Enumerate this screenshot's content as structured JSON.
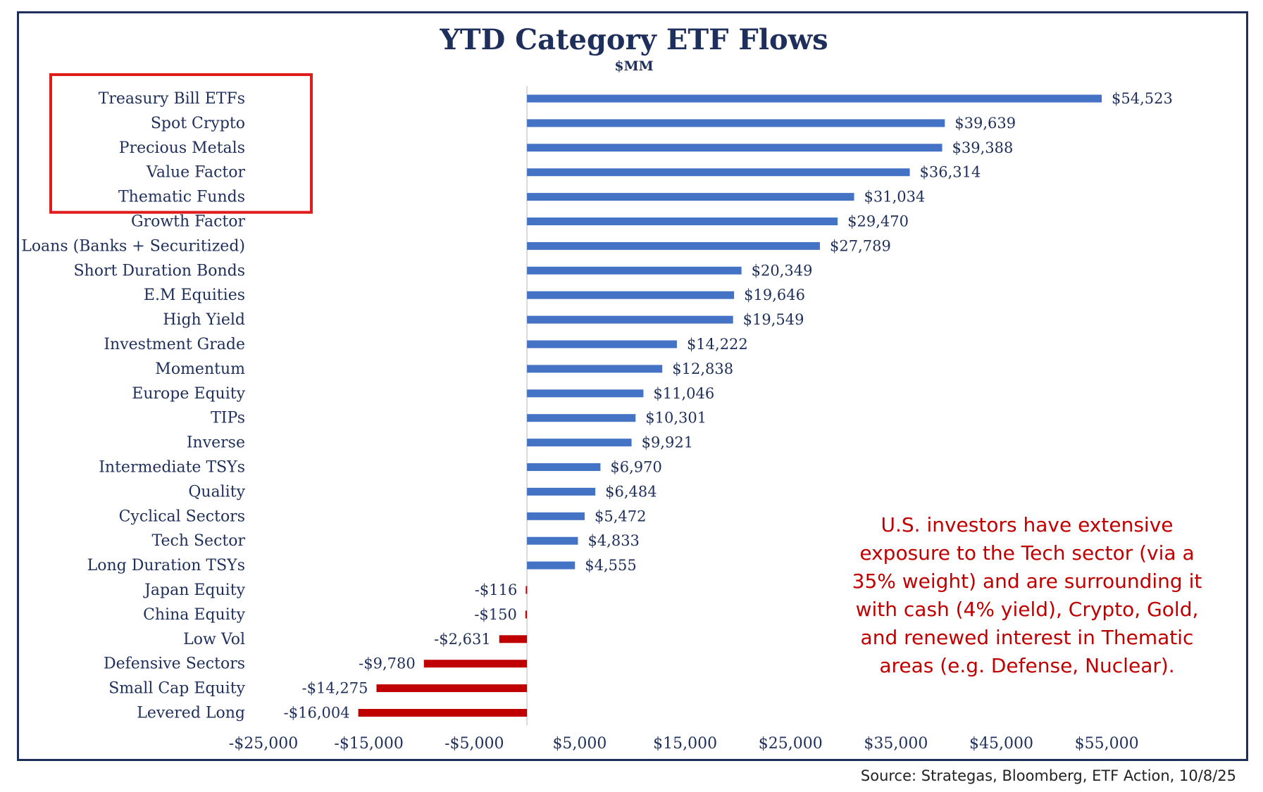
{
  "chart_data": {
    "type": "bar",
    "orientation": "horizontal",
    "title": "YTD Category ETF Flows",
    "subtitle": "$MM",
    "categories": [
      "Treasury Bill ETFs",
      "Spot Crypto",
      "Precious Metals",
      "Value Factor",
      "Thematic Funds",
      "Growth Factor",
      "Loans (Banks + Securitized)",
      "Short Duration Bonds",
      "E.M Equities",
      "High Yield",
      "Investment Grade",
      "Momentum",
      "Europe Equity",
      "TIPs",
      "Inverse",
      "Intermediate TSYs",
      "Quality",
      "Cyclical Sectors",
      "Tech Sector",
      "Long Duration TSYs",
      "Japan Equity",
      "China Equity",
      "Low Vol",
      "Defensive Sectors",
      "Small Cap Equity",
      "Levered Long"
    ],
    "values": [
      54523,
      39639,
      39388,
      36314,
      31034,
      29470,
      27789,
      20349,
      19646,
      19549,
      14222,
      12838,
      11046,
      10301,
      9921,
      6970,
      6484,
      5472,
      4833,
      4555,
      -116,
      -150,
      -2631,
      -9780,
      -14275,
      -16004
    ],
    "value_labels": [
      "$54,523",
      "$39,639",
      "$39,388",
      "$36,314",
      "$31,034",
      "$29,470",
      "$27,789",
      "$20,349",
      "$19,646",
      "$19,549",
      "$14,222",
      "$12,838",
      "$11,046",
      "$10,301",
      "$9,921",
      "$6,970",
      "$6,484",
      "$5,472",
      "$4,833",
      "$4,555",
      "-$116",
      "-$150",
      "-$2,631",
      "-$9,780",
      "-$14,275",
      "-$16,004"
    ],
    "xlim": [
      -25000,
      60000
    ],
    "x_ticks": [
      -25000,
      -15000,
      -5000,
      5000,
      15000,
      25000,
      35000,
      45000,
      55000
    ],
    "x_tick_labels": [
      "-$25,000",
      "-$15,000",
      "-$5,000",
      "$5,000",
      "$15,000",
      "$25,000",
      "$35,000",
      "$45,000",
      "$55,000"
    ],
    "xlabel": "",
    "ylabel": "",
    "grid": false,
    "highlighted_categories": [
      "Treasury Bill ETFs",
      "Spot Crypto",
      "Precious Metals",
      "Value Factor",
      "Thematic Funds"
    ],
    "colors": {
      "positive": "#4472c4",
      "negative": "#c00000",
      "text": "#1f2f5c",
      "highlight_box": "#e01b1b",
      "frame": "#1f2f5c",
      "zero_line": "#d9d9d9"
    }
  },
  "annotation": {
    "lines": [
      "U.S. investors have extensive",
      "exposure to the Tech sector (via a",
      "35% weight) and are surrounding it",
      "with cash (4% yield), Crypto, Gold,",
      "and renewed interest in Thematic",
      "areas (e.g. Defense, Nuclear)."
    ]
  },
  "source": "Source: Strategas, Bloomberg, ETF Action, 10/8/25"
}
